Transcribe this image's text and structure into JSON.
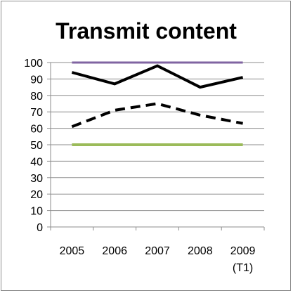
{
  "chart_data": {
    "type": "line",
    "title": "Transmit content",
    "xlabel": "",
    "ylabel": "",
    "categories": [
      "2005",
      "2006",
      "2007",
      "2008",
      "2009"
    ],
    "category_sublabels": [
      "",
      "",
      "",
      "",
      "(T1)"
    ],
    "ylim": [
      0,
      100
    ],
    "y_ticks": [
      "0",
      "10",
      "20",
      "30",
      "40",
      "50",
      "60",
      "70",
      "80",
      "90",
      "100"
    ],
    "grid": true,
    "legend": "none",
    "series": [
      {
        "values": [
          100,
          100,
          100,
          100,
          100
        ],
        "color": "#8064a2",
        "dash": "solid",
        "width": 3
      },
      {
        "values": [
          94,
          87,
          98,
          85,
          91
        ],
        "color": "#000000",
        "dash": "solid",
        "width": 4
      },
      {
        "values": [
          61,
          71,
          75,
          68,
          63
        ],
        "color": "#000000",
        "dash": "dashed",
        "width": 4
      },
      {
        "values": [
          50,
          50,
          50,
          50,
          50
        ],
        "color": "#9bbb59",
        "dash": "solid",
        "width": 4
      }
    ]
  }
}
